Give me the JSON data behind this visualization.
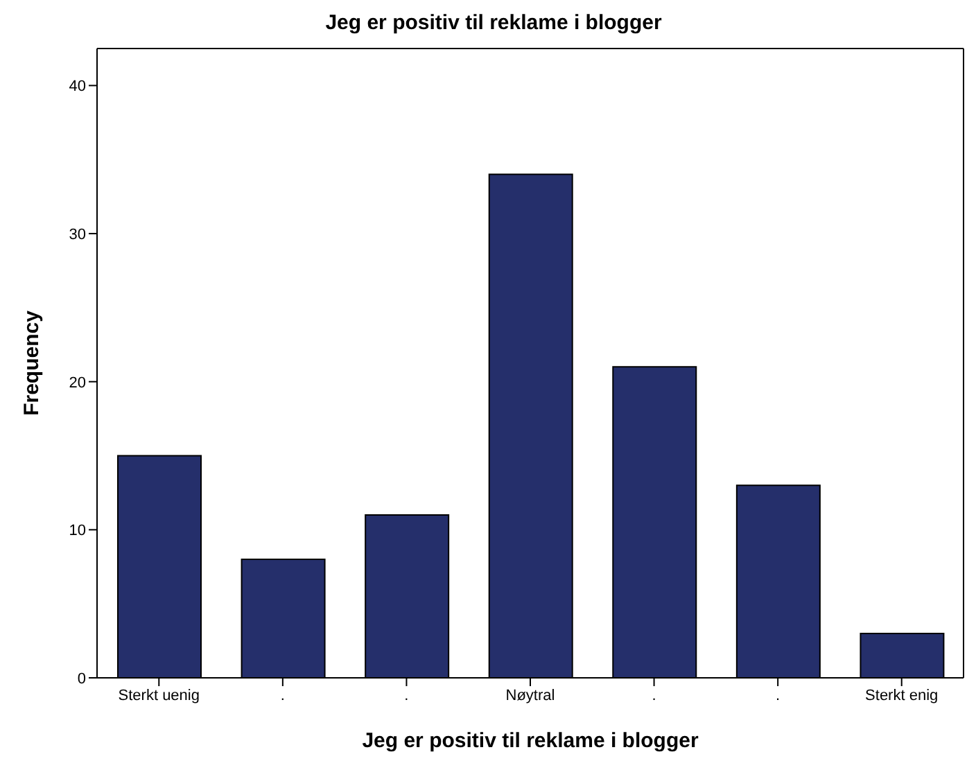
{
  "chart_data": {
    "type": "bar",
    "title": "Jeg er positiv til reklame i blogger",
    "xlabel": "Jeg er positiv til reklame i blogger",
    "ylabel": "Frequency",
    "categories": [
      "Sterkt uenig",
      ".",
      ".",
      "Nøytral",
      ".",
      ".",
      "Sterkt enig"
    ],
    "values": [
      15,
      8,
      11,
      34,
      21,
      13,
      3
    ],
    "color": "#252f6b",
    "ylim": [
      0,
      42.5
    ],
    "yticks": [
      0,
      10,
      20,
      30,
      40
    ]
  }
}
